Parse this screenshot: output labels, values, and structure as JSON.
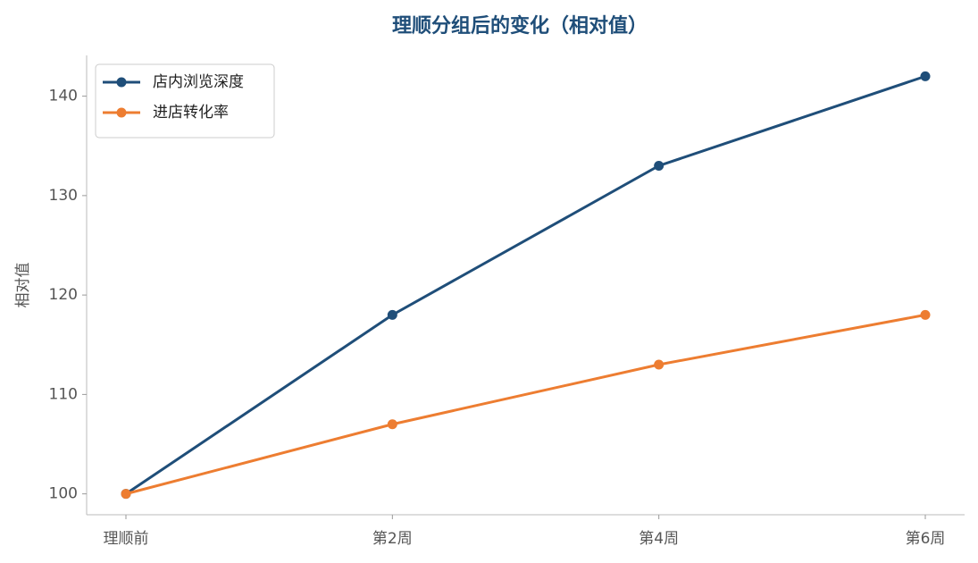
{
  "chart_data": {
    "type": "line",
    "title": "理顺分组后的变化（相对值）",
    "ylabel": "相对值",
    "categories": [
      "理顺前",
      "第2周",
      "第4周",
      "第6周"
    ],
    "series": [
      {
        "name": "店内浏览深度",
        "color": "#1f4e79",
        "values": [
          100,
          118,
          133,
          142
        ]
      },
      {
        "name": "进店转化率",
        "color": "#ed7d31",
        "values": [
          100,
          107,
          113,
          118
        ]
      }
    ],
    "ylim": [
      97.9,
      144.1
    ],
    "yticks": [
      100,
      110,
      120,
      130,
      140
    ],
    "grid": false,
    "legend": "upper-left"
  }
}
